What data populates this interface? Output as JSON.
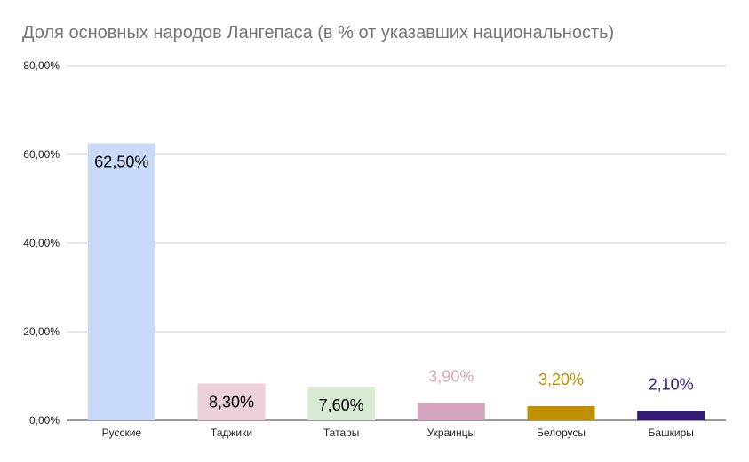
{
  "chart_data": {
    "type": "bar",
    "title": "Доля основных народов Лангепаса (в % от указавших национальность)",
    "xlabel": "",
    "ylabel": "",
    "ylim": [
      0,
      80
    ],
    "yticks": [
      0,
      20,
      40,
      60,
      80
    ],
    "ytick_labels": [
      "0,00%",
      "20,00%",
      "40,00%",
      "60,00%",
      "80,00%"
    ],
    "grid": true,
    "legend": "none",
    "categories": [
      "Русские",
      "Таджики",
      "Татары",
      "Украинцы",
      "Белорусы",
      "Башкиры"
    ],
    "values": [
      62.5,
      8.3,
      7.6,
      3.9,
      3.2,
      2.1
    ],
    "data_labels": [
      "62,50%",
      "8,30%",
      "7,60%",
      "3,90%",
      "3,20%",
      "2,10%"
    ],
    "colors": [
      "#c9daf8",
      "#ead1dc",
      "#d9ead3",
      "#d5a6bd",
      "#bf9000",
      "#351c75"
    ],
    "label_colors": [
      "#000000",
      "#000000",
      "#000000",
      "#d5a6bd",
      "#bf9000",
      "#351c75"
    ]
  }
}
